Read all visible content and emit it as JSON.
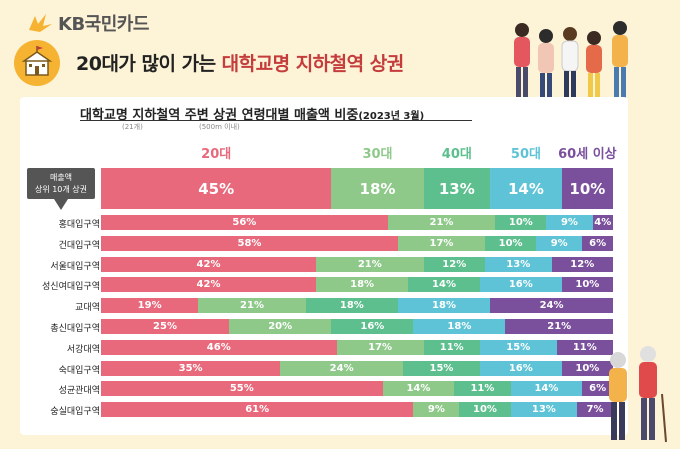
{
  "brand": {
    "name": "KB국민카드"
  },
  "header": {
    "title_part1": "20대가 많이 가는 ",
    "title_part2": "대학교명 지하철역 상권",
    "icon": "university-building-icon"
  },
  "chart_title": {
    "main": "대학교명 지하철역 주변 상권 연령대별 매출액 비중",
    "year": "(2023년 3월)",
    "note1": "(21개)",
    "note2": "(500m 이내)"
  },
  "top_badge": {
    "line1": "매출액",
    "line2": "상위 10개 상권"
  },
  "colors": {
    "20s": "#e8697b",
    "30s": "#8ec98a",
    "40s": "#5cbf8d",
    "50s": "#5ec3d6",
    "60s": "#7a4f9c"
  },
  "age_labels": [
    "20대",
    "30대",
    "40대",
    "50대",
    "60세 이상"
  ],
  "chart_data": {
    "type": "bar",
    "stacked": true,
    "orientation": "horizontal",
    "unit": "%",
    "series_names": [
      "20대",
      "30대",
      "40대",
      "50대",
      "60세 이상"
    ],
    "top_row": {
      "values": [
        45,
        18,
        13,
        14,
        10
      ]
    },
    "rows": [
      {
        "name": "홍대입구역",
        "values": [
          56,
          21,
          10,
          9,
          4
        ]
      },
      {
        "name": "건대입구역",
        "values": [
          58,
          17,
          10,
          9,
          6
        ]
      },
      {
        "name": "서울대입구역",
        "values": [
          42,
          21,
          12,
          13,
          12
        ]
      },
      {
        "name": "성신여대입구역",
        "values": [
          42,
          18,
          14,
          16,
          10
        ]
      },
      {
        "name": "교대역",
        "values": [
          19,
          21,
          18,
          18,
          24
        ]
      },
      {
        "name": "총신대입구역",
        "values": [
          25,
          20,
          16,
          18,
          21
        ]
      },
      {
        "name": "서강대역",
        "values": [
          46,
          17,
          11,
          15,
          11
        ]
      },
      {
        "name": "숙대입구역",
        "values": [
          35,
          24,
          15,
          16,
          10
        ]
      },
      {
        "name": "성균관대역",
        "values": [
          55,
          14,
          11,
          14,
          6
        ]
      },
      {
        "name": "숭실대입구역",
        "values": [
          61,
          9,
          10,
          13,
          7
        ]
      }
    ]
  }
}
